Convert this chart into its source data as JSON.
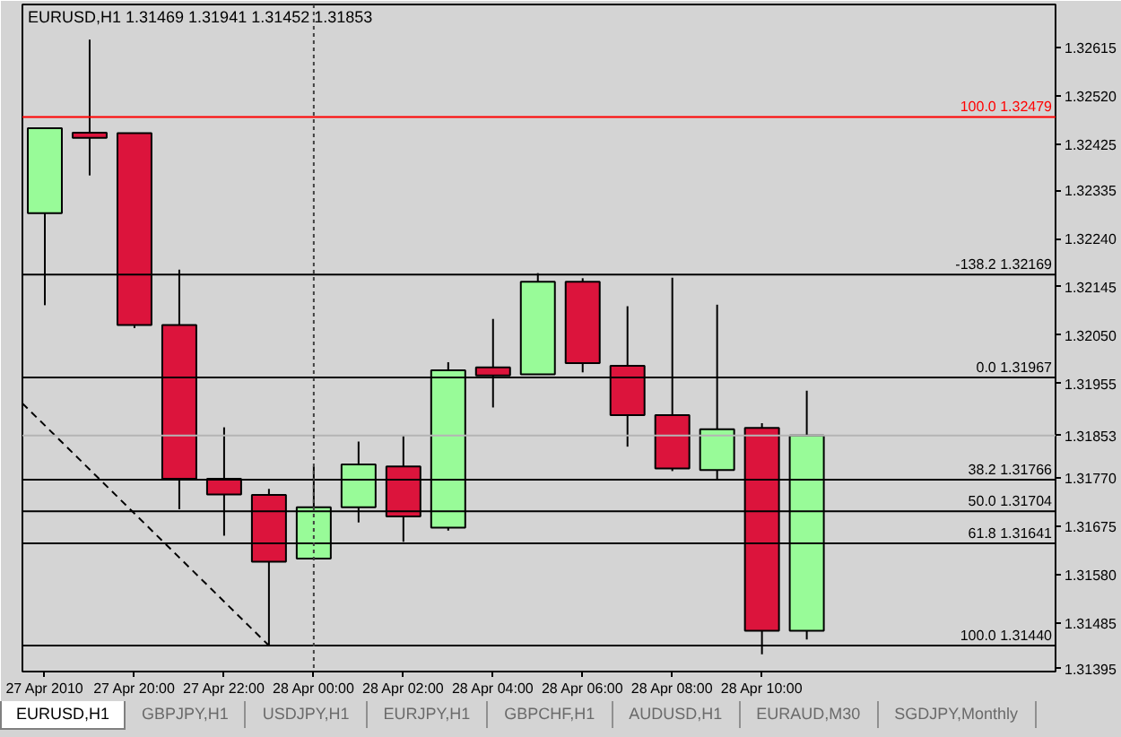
{
  "chart_data": {
    "type": "candlestick",
    "title": "EURUSD,H1 1.31469 1.31941 1.31452 1.31853",
    "x": [
      "2010-04-27T18:00",
      "2010-04-27T19:00",
      "2010-04-27T20:00",
      "2010-04-27T21:00",
      "2010-04-27T22:00",
      "2010-04-27T23:00",
      "2010-04-28T00:00",
      "2010-04-28T01:00",
      "2010-04-28T02:00",
      "2010-04-28T03:00",
      "2010-04-28T04:00",
      "2010-04-28T05:00",
      "2010-04-28T06:00",
      "2010-04-28T07:00",
      "2010-04-28T08:00",
      "2010-04-28T09:00",
      "2010-04-28T10:00",
      "2010-04-28T11:00"
    ],
    "ohlc": [
      [
        1.3229,
        1.32457,
        1.32109,
        1.32457
      ],
      [
        1.32448,
        1.32631,
        1.32364,
        1.32438
      ],
      [
        1.32447,
        1.32447,
        1.32064,
        1.3207
      ],
      [
        1.3207,
        1.32179,
        1.31708,
        1.31768
      ],
      [
        1.31768,
        1.31869,
        1.31656,
        1.31737
      ],
      [
        1.31736,
        1.31748,
        1.3144,
        1.31605
      ],
      [
        1.31611,
        1.31792,
        1.31611,
        1.31712
      ],
      [
        1.31712,
        1.31841,
        1.31682,
        1.31796
      ],
      [
        1.31792,
        1.31852,
        1.31644,
        1.31694
      ],
      [
        1.31672,
        1.31997,
        1.31666,
        1.31981
      ],
      [
        1.31987,
        1.32082,
        1.31908,
        1.31971
      ],
      [
        1.31973,
        1.32172,
        1.31973,
        1.32155
      ],
      [
        1.32155,
        1.32162,
        1.31977,
        1.31995
      ],
      [
        1.3199,
        1.32107,
        1.31831,
        1.31893
      ],
      [
        1.31893,
        1.32163,
        1.31783,
        1.31788
      ],
      [
        1.31785,
        1.3211,
        1.31767,
        1.31865
      ],
      [
        1.31868,
        1.31877,
        1.31423,
        1.31469
      ],
      [
        1.31469,
        1.31941,
        1.31452,
        1.31853
      ]
    ],
    "colors": [
      "#98fb98",
      "#dc143c",
      "#dc143c",
      "#dc143c",
      "#dc143c",
      "#dc143c",
      "#98fb98",
      "#98fb98",
      "#dc143c",
      "#98fb98",
      "#dc143c",
      "#98fb98",
      "#dc143c",
      "#dc143c",
      "#dc143c",
      "#98fb98",
      "#dc143c",
      "#98fb98"
    ],
    "series": [
      {
        "type": "line",
        "x": [
          "2010-04-27T17:30",
          "2010-04-27T23:00"
        ],
        "values": [
          1.31916,
          1.3144
        ],
        "color": "#000000",
        "line_style": "dashed"
      }
    ],
    "xlim": [
      "2010-04-27T17:30",
      "2010-04-28T16:33"
    ],
    "xticks": [
      {
        "value": "2010-04-27T18:00",
        "label": "27 Apr 2010"
      },
      {
        "value": "2010-04-27T20:00",
        "label": "27 Apr 20:00"
      },
      {
        "value": "2010-04-27T22:00",
        "label": "27 Apr 22:00"
      },
      {
        "value": "2010-04-28T00:00",
        "label": "28 Apr 00:00"
      },
      {
        "value": "2010-04-28T02:00",
        "label": "28 Apr 02:00"
      },
      {
        "value": "2010-04-28T04:00",
        "label": "28 Apr 04:00"
      },
      {
        "value": "2010-04-28T06:00",
        "label": "28 Apr 06:00"
      },
      {
        "value": "2010-04-28T08:00",
        "label": "28 Apr 08:00"
      },
      {
        "value": "2010-04-28T10:00",
        "label": "28 Apr 10:00"
      }
    ],
    "ylim": [
      1.31389,
      1.327
    ],
    "yticks": [
      1.32615,
      {
        "value": 1.3252,
        "label": "1.32520"
      },
      1.32425,
      1.32335,
      {
        "value": 1.3224,
        "label": "1.32240"
      },
      1.32145,
      {
        "value": 1.3205,
        "label": "1.32050"
      },
      1.31955,
      1.31853,
      {
        "value": 1.3177,
        "label": "1.31770"
      },
      1.31675,
      {
        "value": 1.3158,
        "label": "1.31580"
      },
      1.31485,
      1.31395
    ],
    "ref_lines": [
      {
        "axis": "y",
        "value": 1.32479,
        "label": "100.0 1.32479",
        "color": "#ff0000"
      },
      {
        "axis": "y",
        "value": 1.32169,
        "label": "-138.2 1.32169",
        "color": "#000000"
      },
      {
        "axis": "y",
        "value": 1.31967,
        "label": "0.0 1.31967",
        "color": "#000000"
      },
      {
        "axis": "y",
        "value": 1.31766,
        "label": "38.2 1.31766",
        "color": "#000000"
      },
      {
        "axis": "y",
        "value": 1.31704,
        "label": "50.0 1.31704",
        "color": "#000000"
      },
      {
        "axis": "y",
        "value": 1.31641,
        "label": "61.8 1.31641",
        "color": "#000000"
      },
      {
        "axis": "y",
        "value": 1.3144,
        "label": "100.0 1.31440",
        "color": "#000000"
      },
      {
        "axis": "y",
        "value": 1.31853,
        "color": "#b4b4b4"
      },
      {
        "axis": "x",
        "value": "2010-04-28T00:00",
        "color": "#404040",
        "line_style": "dotted"
      }
    ],
    "annotations": [
      "EURUSD,H1",
      "GBPJPY,H1",
      "USDJPY,H1",
      "EURJPY,H1",
      "GBPCHF,H1",
      "AUDUSD,H1",
      "EURAUD,M30",
      "SGDJPY,Monthly"
    ]
  }
}
